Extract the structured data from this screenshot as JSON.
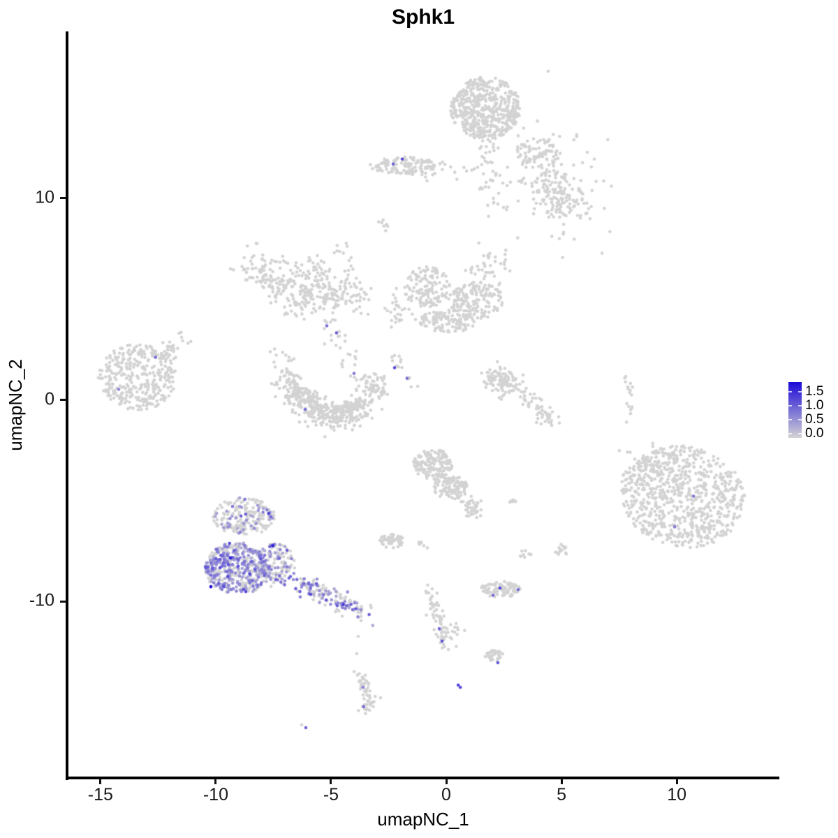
{
  "chart_data": {
    "type": "scatter",
    "title": "Sphk1",
    "xlabel": "umapNC_1",
    "ylabel": "umapNC_2",
    "x_ticks": [
      -15,
      -10,
      -5,
      0,
      5,
      10
    ],
    "y_ticks": [
      -10,
      0,
      10
    ],
    "xlim": [
      -16.45,
      14.45
    ],
    "ylim": [
      -18.72,
      18.27
    ],
    "grid": false,
    "legend_position": "right",
    "legend": {
      "labels": [
        "1.5",
        "1.0",
        "0.5",
        "0.0"
      ],
      "values": [
        1.5,
        1.0,
        0.5,
        0.0
      ],
      "low_color": "#D3D3D3",
      "high_color": "#1C0AD8",
      "vmax": 1.75
    },
    "point_color_zero": "#D3D3D3",
    "point_radius_px": 2.3,
    "seed": 7,
    "clusters": [
      {
        "name": "top-round",
        "parts": [
          {
            "kind": "disc",
            "cx": 1.7,
            "cy": 14.46,
            "rx": 1.52,
            "ry": 1.56,
            "n": 520
          }
        ]
      },
      {
        "name": "top-strand",
        "parts": [
          {
            "kind": "path",
            "pts": [
              [
                1.73,
                13.0
              ],
              [
                1.95,
                11.2
              ],
              [
                2.05,
                9.3
              ]
            ],
            "thick": 0.5,
            "n": 35
          }
        ]
      },
      {
        "name": "top-right-diffuse",
        "parts": [
          {
            "kind": "gauss",
            "cx": 4.42,
            "cy": 11.0,
            "sx": 1.5,
            "sy": 1.5,
            "n": 90
          },
          {
            "kind": "disc",
            "cx": 4.0,
            "cy": 12.2,
            "rx": 1.0,
            "ry": 0.8,
            "n": 70
          },
          {
            "kind": "disc",
            "cx": 5.2,
            "cy": 9.7,
            "rx": 1.1,
            "ry": 0.9,
            "n": 80
          },
          {
            "kind": "disc",
            "cx": 4.6,
            "cy": 10.6,
            "rx": 0.9,
            "ry": 0.8,
            "n": 60
          }
        ]
      },
      {
        "name": "upper-left-bar",
        "parts": [
          {
            "kind": "disc",
            "cx": -1.88,
            "cy": 11.63,
            "rx": 1.45,
            "ry": 0.42,
            "n": 120
          },
          {
            "kind": "gauss",
            "cx": -0.3,
            "cy": 11.35,
            "sx": 0.8,
            "sy": 0.25,
            "n": 20
          }
        ]
      },
      {
        "name": "bird",
        "parts": [
          {
            "kind": "path",
            "pts": [
              [
                -8.5,
                6.9
              ],
              [
                -7.5,
                5.8
              ],
              [
                -6.3,
                5.0
              ],
              [
                -5.0,
                5.3
              ],
              [
                -3.9,
                5.0
              ]
            ],
            "thick": 0.9,
            "n": 280
          },
          {
            "kind": "gauss",
            "cx": -6.0,
            "cy": 6.3,
            "sx": 0.6,
            "sy": 0.4,
            "n": 60
          }
        ]
      },
      {
        "name": "chain-top",
        "parts": [
          {
            "kind": "path",
            "pts": [
              [
                -4.6,
                7.65
              ],
              [
                -4.3,
                6.6
              ],
              [
                -3.75,
                4.9
              ]
            ],
            "thick": 0.36,
            "n": 22
          },
          {
            "kind": "path",
            "pts": [
              [
                -2.85,
                8.9
              ],
              [
                -2.5,
                8.55
              ]
            ],
            "thick": 0.2,
            "n": 7
          }
        ]
      },
      {
        "name": "chain-mid",
        "parts": [
          {
            "kind": "path",
            "pts": [
              [
                -5.3,
                3.85
              ],
              [
                -4.6,
                2.6
              ],
              [
                -3.9,
                1.3
              ]
            ],
            "thick": 0.44,
            "n": 26
          },
          {
            "kind": "path",
            "pts": [
              [
                -7.4,
                2.35
              ],
              [
                -6.6,
                1.5
              ]
            ],
            "thick": 0.5,
            "n": 14
          }
        ]
      },
      {
        "name": "crescent",
        "parts": [
          {
            "kind": "path",
            "pts": [
              [
                -6.9,
                1.2
              ],
              [
                -6.5,
                0.2
              ],
              [
                -5.8,
                -0.6
              ],
              [
                -4.9,
                -0.95
              ],
              [
                -4.0,
                -0.75
              ],
              [
                -3.3,
                0.1
              ],
              [
                -3.0,
                1.0
              ]
            ],
            "thick": 0.6,
            "n": 380
          },
          {
            "kind": "path",
            "pts": [
              [
                -6.3,
                0.4
              ],
              [
                -5.6,
                -0.3
              ],
              [
                -4.7,
                -0.55
              ],
              [
                -3.9,
                -0.3
              ]
            ],
            "thick": 0.4,
            "n": 120
          }
        ]
      },
      {
        "name": "mid-right-mass",
        "parts": [
          {
            "kind": "disc",
            "cx": -0.85,
            "cy": 5.6,
            "rx": 1.0,
            "ry": 1.0,
            "n": 130
          },
          {
            "kind": "disc",
            "cx": 1.3,
            "cy": 4.9,
            "rx": 1.2,
            "ry": 0.95,
            "n": 160
          },
          {
            "kind": "disc",
            "cx": 0.1,
            "cy": 3.9,
            "rx": 1.3,
            "ry": 0.55,
            "n": 110
          },
          {
            "kind": "gauss",
            "cx": 1.85,
            "cy": 6.68,
            "sx": 0.5,
            "sy": 0.5,
            "n": 40
          },
          {
            "kind": "gauss",
            "cx": -1.94,
            "cy": 4.26,
            "sx": 0.35,
            "sy": 0.5,
            "n": 30
          }
        ]
      },
      {
        "name": "diag-chain",
        "parts": [
          {
            "kind": "path",
            "pts": [
              [
                -2.45,
                2.5
              ],
              [
                -1.4,
                0.6
              ]
            ],
            "thick": 0.3,
            "n": 14
          }
        ]
      },
      {
        "name": "left-cluster",
        "parts": [
          {
            "kind": "disc",
            "cx": -13.4,
            "cy": 1.12,
            "rx": 1.7,
            "ry": 1.65,
            "n": 340
          },
          {
            "kind": "path",
            "pts": [
              [
                -12.4,
                2.2
              ],
              [
                -11.3,
                3.1
              ]
            ],
            "thick": 0.5,
            "n": 30
          }
        ]
      },
      {
        "name": "hook",
        "parts": [
          {
            "kind": "path",
            "pts": [
              [
                2.0,
                1.3
              ],
              [
                2.7,
                0.7
              ],
              [
                3.5,
                0.0
              ],
              [
                4.3,
                -0.7
              ],
              [
                4.6,
                -1.2
              ]
            ],
            "thick": 0.5,
            "n": 110
          },
          {
            "kind": "gauss",
            "cx": 2.3,
            "cy": 1.0,
            "sx": 0.45,
            "sy": 0.35,
            "n": 50
          }
        ]
      },
      {
        "name": "right-streak",
        "parts": [
          {
            "kind": "path",
            "pts": [
              [
                7.85,
                1.2
              ],
              [
                8.0,
                0.3
              ],
              [
                7.9,
                -0.6
              ]
            ],
            "thick": 0.16,
            "n": 16
          }
        ]
      },
      {
        "name": "right-big",
        "parts": [
          {
            "kind": "disc",
            "cx": 10.28,
            "cy": -4.81,
            "rx": 2.7,
            "ry": 2.5,
            "rot": -25,
            "n": 780
          },
          {
            "kind": "gauss",
            "cx": 8.3,
            "cy": -3.5,
            "sx": 0.6,
            "sy": 0.8,
            "n": 40
          }
        ]
      },
      {
        "name": "center-low",
        "parts": [
          {
            "kind": "disc",
            "cx": -0.58,
            "cy": -3.18,
            "rx": 0.85,
            "ry": 0.75,
            "n": 150
          },
          {
            "kind": "disc",
            "cx": 0.15,
            "cy": -4.3,
            "rx": 0.75,
            "ry": 0.6,
            "n": 110
          },
          {
            "kind": "path",
            "pts": [
              [
                0.8,
                -4.9
              ],
              [
                1.35,
                -5.6
              ]
            ],
            "thick": 0.4,
            "n": 40
          }
        ]
      },
      {
        "name": "small-blob-left",
        "parts": [
          {
            "kind": "disc",
            "cx": -2.39,
            "cy": -7.0,
            "rx": 0.55,
            "ry": 0.35,
            "n": 55
          },
          {
            "kind": "gauss",
            "cx": -1.0,
            "cy": -7.15,
            "sx": 0.12,
            "sy": 0.12,
            "n": 4
          }
        ]
      },
      {
        "name": "mini-blobs",
        "parts": [
          {
            "kind": "disc",
            "cx": 3.42,
            "cy": -7.64,
            "rx": 0.3,
            "ry": 0.18,
            "n": 9
          },
          {
            "kind": "disc",
            "cx": 4.97,
            "cy": -7.43,
            "rx": 0.35,
            "ry": 0.3,
            "n": 14
          },
          {
            "kind": "disc",
            "cx": 2.85,
            "cy": -4.98,
            "rx": 0.22,
            "ry": 0.12,
            "n": 6
          }
        ]
      },
      {
        "name": "sphk1-upper-lobe",
        "expr": {
          "frac": 0.22,
          "base": 0.3,
          "spread": 0.35
        },
        "parts": [
          {
            "kind": "disc",
            "cx": -8.76,
            "cy": -5.78,
            "rx": 1.35,
            "ry": 0.95,
            "n": 200
          }
        ]
      },
      {
        "name": "sphk1-core",
        "expr": {
          "frac": 0.6,
          "base": 0.3,
          "spread": 0.4
        },
        "parts": [
          {
            "kind": "disc",
            "cx": -9.06,
            "cy": -8.37,
            "rx": 1.4,
            "ry": 1.3,
            "n": 430
          }
        ]
      },
      {
        "name": "sphk1-right",
        "expr": {
          "frac": 0.35,
          "base": 0.28,
          "spread": 0.35
        },
        "parts": [
          {
            "kind": "disc",
            "cx": -7.4,
            "cy": -8.2,
            "rx": 0.85,
            "ry": 1.1,
            "n": 150
          }
        ]
      },
      {
        "name": "sphk1-tail",
        "expr": {
          "frac": 0.45,
          "base": 0.3,
          "spread": 0.38
        },
        "parts": [
          {
            "kind": "path",
            "pts": [
              [
                -6.5,
                -9.0
              ],
              [
                -5.3,
                -9.6
              ],
              [
                -4.1,
                -10.3
              ],
              [
                -3.5,
                -10.6
              ]
            ],
            "thick": 0.45,
            "n": 150
          }
        ]
      },
      {
        "name": "bottom-chain",
        "parts": [
          {
            "kind": "path",
            "pts": [
              [
                -0.82,
                -9.34
              ],
              [
                -0.55,
                -10.3
              ],
              [
                -0.12,
                -11.4
              ],
              [
                -0.07,
                -12.4
              ]
            ],
            "thick": 0.36,
            "n": 65
          },
          {
            "kind": "gauss",
            "cx": 0.3,
            "cy": -11.3,
            "sx": 0.18,
            "sy": 0.25,
            "n": 10
          }
        ]
      },
      {
        "name": "bottom-right-bar",
        "parts": [
          {
            "kind": "disc",
            "cx": 2.36,
            "cy": -9.41,
            "rx": 0.9,
            "ry": 0.4,
            "n": 85
          }
        ]
      },
      {
        "name": "bottom-blob",
        "parts": [
          {
            "kind": "disc",
            "cx": 2.06,
            "cy": -12.7,
            "rx": 0.42,
            "ry": 0.28,
            "n": 40
          }
        ]
      },
      {
        "name": "snake",
        "parts": [
          {
            "kind": "path",
            "pts": [
              [
                -3.85,
                -13.56
              ],
              [
                -3.5,
                -14.2
              ],
              [
                -3.3,
                -14.9
              ],
              [
                -3.6,
                -15.5
              ]
            ],
            "thick": 0.3,
            "n": 55
          }
        ]
      }
    ],
    "expressing_points": [
      [
        -2.3,
        11.7,
        1.0
      ],
      [
        -1.91,
        11.94,
        1.2
      ],
      [
        -5.18,
        3.67,
        0.9
      ],
      [
        -4.76,
        3.32,
        1.0
      ],
      [
        -4.0,
        1.31,
        0.8
      ],
      [
        -6.12,
        -0.48,
        0.9
      ],
      [
        -2.24,
        1.59,
        1.2
      ],
      [
        -1.7,
        1.07,
        0.9
      ],
      [
        -12.61,
        2.11,
        0.9
      ],
      [
        -14.21,
        0.52,
        0.7
      ],
      [
        10.73,
        -4.78,
        0.8
      ],
      [
        9.91,
        -6.3,
        0.8
      ],
      [
        -10.21,
        -9.27,
        1.9
      ],
      [
        -9.36,
        -7.85,
        1.5
      ],
      [
        -7.7,
        -5.64,
        1.3
      ],
      [
        -5.88,
        -9.65,
        1.2
      ],
      [
        -5.21,
        -9.93,
        1.1
      ],
      [
        -4.73,
        -10.21,
        1.0
      ],
      [
        -4.06,
        -10.41,
        0.9
      ],
      [
        -0.3,
        -11.35,
        1.0
      ],
      [
        -0.18,
        -11.97,
        1.1
      ],
      [
        2.03,
        -9.69,
        0.9
      ],
      [
        2.33,
        -9.34,
        1.2
      ],
      [
        3.12,
        -9.41,
        0.9
      ],
      [
        2.24,
        -13.04,
        1.1
      ],
      [
        0.52,
        -14.15,
        1.3
      ],
      [
        0.61,
        -14.26,
        1.2
      ],
      [
        -3.61,
        -14.26,
        0.7
      ],
      [
        -3.58,
        -15.22,
        0.9
      ],
      [
        -6.09,
        -16.26,
        1.0
      ]
    ],
    "noise_points": [
      [
        6.76,
        7.27
      ],
      [
        5.09,
        8.3
      ],
      [
        -3.82,
        -11.73
      ],
      [
        -3.88,
        -12.59
      ],
      [
        7.82,
        -1.11
      ],
      [
        -1.09,
        -7.06
      ],
      [
        -0.82,
        -7.34
      ],
      [
        -6.27,
        -16.12
      ]
    ]
  }
}
